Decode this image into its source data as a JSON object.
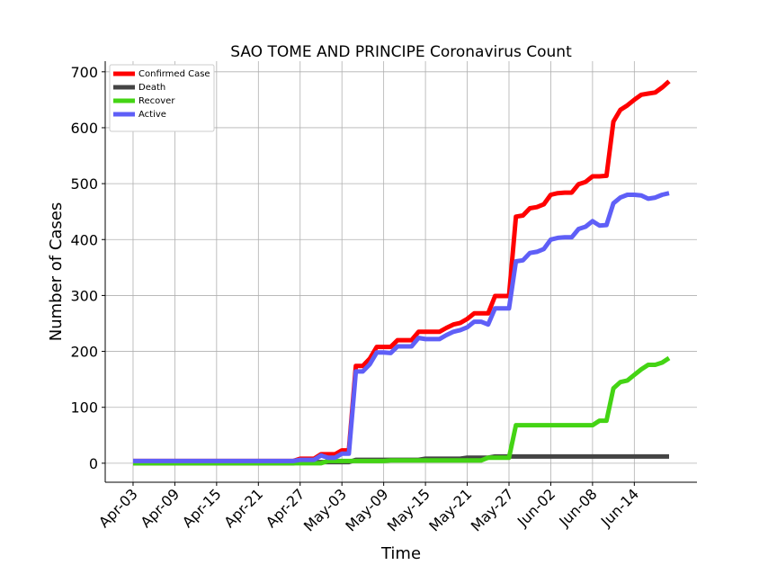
{
  "chart_data": {
    "type": "line",
    "title": "SAO TOME AND PRINCIPE Coronavirus Count",
    "x_label": "Time",
    "y_label": "Number of Cases",
    "x": [
      "Apr-03",
      "Apr-04",
      "Apr-05",
      "Apr-06",
      "Apr-07",
      "Apr-08",
      "Apr-09",
      "Apr-10",
      "Apr-11",
      "Apr-12",
      "Apr-13",
      "Apr-14",
      "Apr-15",
      "Apr-16",
      "Apr-17",
      "Apr-18",
      "Apr-19",
      "Apr-20",
      "Apr-21",
      "Apr-22",
      "Apr-23",
      "Apr-24",
      "Apr-25",
      "Apr-26",
      "Apr-27",
      "Apr-28",
      "Apr-29",
      "Apr-30",
      "May-01",
      "May-02",
      "May-03",
      "May-04",
      "May-05",
      "May-06",
      "May-07",
      "May-08",
      "May-09",
      "May-10",
      "May-11",
      "May-12",
      "May-13",
      "May-14",
      "May-15",
      "May-16",
      "May-17",
      "May-18",
      "May-19",
      "May-20",
      "May-21",
      "May-22",
      "May-23",
      "May-24",
      "May-25",
      "May-26",
      "May-27",
      "May-28",
      "May-29",
      "May-30",
      "May-31",
      "Jun-01",
      "Jun-02",
      "Jun-03",
      "Jun-04",
      "Jun-05",
      "Jun-06",
      "Jun-07",
      "Jun-08",
      "Jun-09",
      "Jun-10",
      "Jun-11",
      "Jun-12",
      "Jun-13",
      "Jun-14",
      "Jun-15",
      "Jun-16",
      "Jun-17",
      "Jun-18",
      "Jun-19"
    ],
    "series": [
      {
        "name": "Confirmed Case",
        "color": "#ff0000",
        "values": [
          4,
          4,
          4,
          4,
          4,
          4,
          4,
          4,
          4,
          4,
          4,
          4,
          4,
          4,
          4,
          4,
          4,
          4,
          4,
          4,
          4,
          4,
          4,
          4,
          8,
          8,
          8,
          16,
          16,
          16,
          23,
          23,
          174,
          174,
          187,
          208,
          208,
          208,
          220,
          220,
          220,
          235,
          235,
          235,
          235,
          242,
          248,
          251,
          258,
          268,
          268,
          268,
          299,
          299,
          299,
          441,
          443,
          456,
          458,
          463,
          480,
          483,
          484,
          484,
          499,
          503,
          513,
          513,
          514,
          611,
          632,
          640,
          650,
          659,
          661,
          663,
          672,
          683
        ]
      },
      {
        "name": "Death",
        "color": "#444444",
        "values": [
          0,
          0,
          0,
          0,
          0,
          0,
          0,
          0,
          0,
          0,
          0,
          0,
          0,
          0,
          0,
          0,
          0,
          0,
          0,
          0,
          0,
          0,
          0,
          0,
          2,
          2,
          2,
          2,
          2,
          2,
          2,
          2,
          6,
          6,
          6,
          6,
          6,
          6,
          6,
          6,
          6,
          6,
          8,
          8,
          8,
          8,
          8,
          8,
          10,
          10,
          10,
          10,
          12,
          12,
          12,
          12,
          12,
          12,
          12,
          12,
          12,
          12,
          12,
          12,
          12,
          12,
          12,
          12,
          12,
          12,
          12,
          12,
          12,
          12,
          12,
          12,
          12,
          12
        ]
      },
      {
        "name": "Recover",
        "color": "#44d414",
        "values": [
          0,
          0,
          0,
          0,
          0,
          0,
          0,
          0,
          0,
          0,
          0,
          0,
          0,
          0,
          0,
          0,
          0,
          0,
          0,
          0,
          0,
          0,
          0,
          0,
          0,
          0,
          0,
          0,
          4,
          4,
          4,
          4,
          4,
          4,
          4,
          4,
          4,
          5,
          5,
          5,
          5,
          5,
          5,
          5,
          5,
          5,
          5,
          5,
          5,
          5,
          5,
          10,
          10,
          10,
          10,
          68,
          68,
          68,
          68,
          68,
          68,
          68,
          68,
          68,
          68,
          68,
          68,
          76,
          76,
          134,
          145,
          148,
          158,
          168,
          176,
          176,
          180,
          188
        ]
      },
      {
        "name": "Active",
        "color": "#5f5ff7",
        "values": [
          4,
          4,
          4,
          4,
          4,
          4,
          4,
          4,
          4,
          4,
          4,
          4,
          4,
          4,
          4,
          4,
          4,
          4,
          4,
          4,
          4,
          4,
          4,
          4,
          6,
          6,
          6,
          14,
          10,
          10,
          17,
          17,
          164,
          164,
          177,
          198,
          198,
          197,
          209,
          209,
          209,
          224,
          222,
          222,
          222,
          229,
          235,
          238,
          243,
          253,
          253,
          248,
          277,
          277,
          277,
          361,
          363,
          376,
          378,
          383,
          400,
          403,
          404,
          404,
          419,
          423,
          433,
          425,
          426,
          465,
          475,
          480,
          480,
          479,
          473,
          475,
          480,
          483
        ]
      }
    ],
    "xlim": [
      "Mar-30",
      "Jun-23"
    ],
    "xticks": [
      "Apr-03",
      "Apr-09",
      "Apr-15",
      "Apr-21",
      "Apr-27",
      "May-03",
      "May-09",
      "May-15",
      "May-21",
      "May-27",
      "Jun-02",
      "Jun-08",
      "Jun-14"
    ],
    "ylim": [
      -34,
      719
    ],
    "yticks": [
      0,
      100,
      200,
      300,
      400,
      500,
      600,
      700
    ],
    "grid": true,
    "legend": "upper-left"
  }
}
